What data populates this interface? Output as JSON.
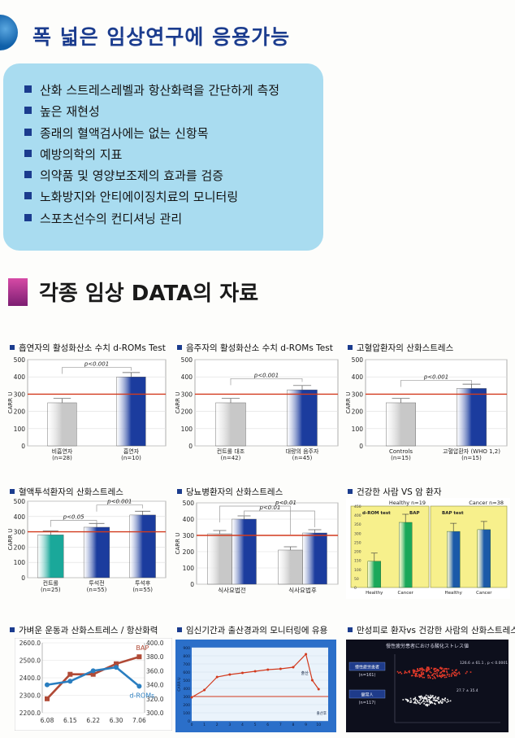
{
  "section1": {
    "title": "폭 넓은 임상연구에 응용가능",
    "bullets": [
      "산화 스트레스레벨과 항산화력을 간단하게 측정",
      "높은 재현성",
      "종래의 혈액검사에는 없는 신항목",
      "예방의학의 지표",
      "의약품 및 영양보조제의 효과를 검증",
      "노화방지와 안티에이징치료의 모니터링",
      "스포츠선수의 컨디셔닝 관리"
    ]
  },
  "section2": {
    "title": "각종 임상 DATA의 자료"
  },
  "chart_data": [
    {
      "type": "bar",
      "title": "흡연자의 활성화산소 수치 d-ROMs Test",
      "ylabel": "CARR U",
      "ylim": [
        0,
        500
      ],
      "yticks": [
        "0",
        "100",
        "200",
        "300",
        "400",
        "500"
      ],
      "categories": [
        "비흡연자",
        "흡연자"
      ],
      "sublabels": [
        "(n=28)",
        "(n=10)"
      ],
      "values": [
        250,
        400
      ],
      "colors": [
        "#c8c8c8",
        "#1b3c9e"
      ],
      "reference_line": 300,
      "annotations": [
        "p<0.001"
      ]
    },
    {
      "type": "bar",
      "title": "음주자의 활성화산소 수치 d-ROMs Test",
      "ylabel": "CARR U",
      "ylim": [
        0,
        500
      ],
      "yticks": [
        "0",
        "100",
        "200",
        "300",
        "400",
        "500"
      ],
      "categories": [
        "컨트롤 대조",
        "대량의 음주자"
      ],
      "sublabels": [
        "(n=42)",
        "(n=45)"
      ],
      "values": [
        250,
        325
      ],
      "colors": [
        "#c8c8c8",
        "#1b3c9e"
      ],
      "reference_line": 300,
      "annotations": [
        "p<0.001"
      ]
    },
    {
      "type": "bar",
      "title": "고혈압환자의 산화스트레스",
      "ylabel": "CARR U",
      "ylim": [
        0,
        500
      ],
      "yticks": [
        "0",
        "100",
        "200",
        "300",
        "400",
        "500"
      ],
      "categories": [
        "Controls",
        "고혈압환자 (WHO 1,2)"
      ],
      "sublabels": [
        "(n=15)",
        "(n=15)"
      ],
      "values": [
        250,
        333
      ],
      "colors": [
        "#c8c8c8",
        "#1b3c9e"
      ],
      "reference_line": 300,
      "annotations": [
        "p<0.001"
      ]
    },
    {
      "type": "bar",
      "title": "혈액투석환자의 산화스트레스",
      "ylabel": "CARR U",
      "ylim": [
        0,
        500
      ],
      "yticks": [
        "0",
        "100",
        "200",
        "300",
        "400",
        "500"
      ],
      "categories": [
        "컨트롤",
        "투석전",
        "투석후"
      ],
      "sublabels": [
        "(n=25)",
        "(n=55)",
        "(n=55)"
      ],
      "values": [
        280,
        330,
        410
      ],
      "colors": [
        "#1aa89a",
        "#1b3c9e",
        "#1b3c9e"
      ],
      "reference_line": 300,
      "annotations": [
        "p<0.05",
        "p<0.001"
      ]
    },
    {
      "type": "bar",
      "title": "당뇨병환자의 산화스트레스",
      "ylabel": "CARR U",
      "ylim": [
        0,
        500
      ],
      "yticks": [
        "0",
        "100",
        "200",
        "300",
        "400",
        "500"
      ],
      "categories": [
        "식사요법전",
        "식사요법후"
      ],
      "series": [
        {
          "values": [
            310,
            210
          ]
        },
        {
          "values": [
            400,
            315
          ]
        }
      ],
      "colors": [
        "#c8c8c8",
        "#1b3c9e"
      ],
      "reference_line": 300,
      "annotations": [
        "p<0.01",
        "p<0.01"
      ]
    },
    {
      "type": "bar",
      "title": "건강한 사람 VS 암 환자",
      "panels": [
        {
          "header": "Healthy n=19",
          "categories": [
            "Healthy",
            "Cancer"
          ],
          "values": [
            145,
            360
          ],
          "notes": [
            "d-ROM test",
            "BAP"
          ]
        },
        {
          "header": "Cancer n=38",
          "categories": [
            "Healthy",
            "Cancer"
          ],
          "values": [
            310,
            320
          ],
          "notes": [
            "BAP test"
          ]
        }
      ],
      "yticks": [
        "0",
        "50",
        "100",
        "150",
        "200",
        "250",
        "300",
        "350",
        "400",
        "450"
      ],
      "ylim": [
        0,
        450
      ],
      "colors": [
        "#1aa85a",
        "#1b5aa8"
      ]
    },
    {
      "type": "line",
      "title": "가벼운 운동과 산화스트레스 / 항산화력",
      "categories": [
        "6.08",
        "6.15",
        "6.22",
        "6.30",
        "7.06"
      ],
      "series": [
        {
          "name": "BAP",
          "axis": "left",
          "values": [
            2280,
            2420,
            2420,
            2480,
            2520
          ],
          "color": "#b04a36"
        },
        {
          "name": "d-ROMs",
          "axis": "right",
          "values": [
            340,
            345,
            360,
            365,
            338
          ],
          "color": "#2a7ec0"
        }
      ],
      "left_ticks": [
        "2200.0",
        "2300.0",
        "2400.0",
        "2500.0",
        "2600.0"
      ],
      "right_ticks": [
        "300.0",
        "320.0",
        "340.0",
        "360.0",
        "380.0",
        "400.0"
      ],
      "ylim_left": [
        2200,
        2600
      ],
      "ylim_right": [
        300,
        400
      ]
    },
    {
      "type": "line",
      "title": "임신기간과 출산경과의 모니터링에 유용",
      "x": [
        0,
        1,
        2,
        3,
        4,
        5,
        6,
        7,
        8,
        9,
        9.5,
        10
      ],
      "values": [
        290,
        380,
        540,
        570,
        590,
        610,
        630,
        640,
        660,
        820,
        500,
        390
      ],
      "reference_line": 300,
      "ylim": [
        0,
        900
      ],
      "yticks": [
        "0",
        "100",
        "200",
        "300",
        "400",
        "500",
        "600",
        "700",
        "800",
        "900"
      ],
      "xticks": [
        "0",
        "1",
        "2",
        "3",
        "4",
        "5",
        "6",
        "7",
        "8",
        "9",
        "10"
      ],
      "ylabel": "CARR U",
      "annotation": "출산",
      "xlabel_corner": "출산후"
    },
    {
      "type": "scatter",
      "title": "만성피로 환자vs 건강한 사람의 산화스트레스 치",
      "inner_title": "慢性疲労患者における酸化ストレス値",
      "groups": [
        {
          "label": "慢性疲労患者",
          "sublabel": "(n=161)",
          "color": "#e23a2a",
          "stat": "126.6 ± 61.1 , p < 0.0001"
        },
        {
          "label": "健常人",
          "sublabel": "(n=117)",
          "color": "#f2f2f2",
          "stat": "27.7 ± 35.4"
        }
      ]
    }
  ]
}
